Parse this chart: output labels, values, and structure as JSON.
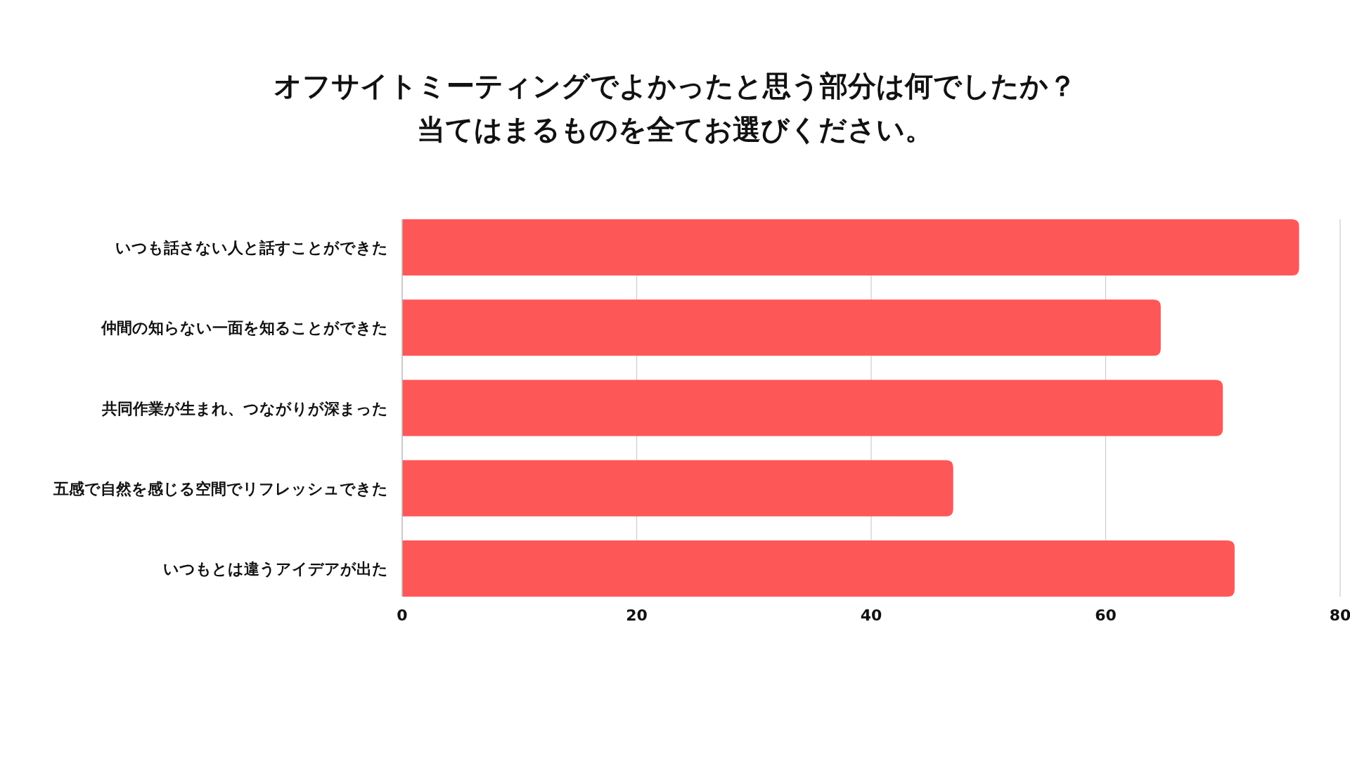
{
  "chart_data": {
    "type": "bar",
    "orientation": "horizontal",
    "title": "オフサイトミーティングでよかったと思う部分は何でしたか？",
    "subtitle": "当てはまるものを全てお選びください。",
    "categories": [
      "いつも話さない人と話すことができた",
      "仲間の知らない一面を知ることができた",
      "共同作業が生まれ、つながりが深まった",
      "五感で自然を感じる空間でリフレッシュできた",
      "いつもとは違うアイデアが出た"
    ],
    "values": [
      76.5,
      64.7,
      70,
      47,
      71
    ],
    "color": "#fe5758",
    "xlim": [
      0,
      80
    ],
    "xticks": [
      0,
      20,
      40,
      60,
      80
    ],
    "grid": "x"
  }
}
